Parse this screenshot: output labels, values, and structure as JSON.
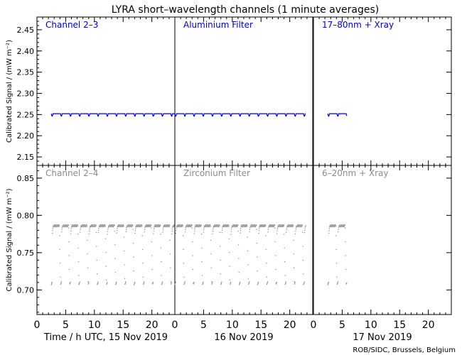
{
  "title": "LYRA short–wavelength channels (1 minute averages)",
  "footer": "ROB/SIDC, Brussels, Belgium",
  "colors": {
    "upper": "#0000c8",
    "lower": "#8c8c8c",
    "frame": "#000000"
  },
  "xaxis": {
    "range": [
      0,
      24
    ],
    "ticks": [
      0,
      5,
      10,
      15,
      20
    ],
    "day_labels": [
      "Time / h UTC, 15 Nov 2019",
      "16 Nov 2019",
      "17 Nov 2019"
    ]
  },
  "chart_data": [
    {
      "type": "line",
      "row": "upper",
      "ylabel": "Calibrated Signal / (mW m⁻²)",
      "ylim": [
        2.13,
        2.48
      ],
      "yticks": [
        "2.15",
        "2.20",
        "2.25",
        "2.30",
        "2.35",
        "2.40",
        "2.45"
      ],
      "panels": [
        {
          "label": "Channel 2–3",
          "day": "15 Nov 2019",
          "x_start": 2.5,
          "x_end": 24,
          "level": 2.252,
          "dip": 0.006,
          "period_h": 1.6
        },
        {
          "label": "Aluminium Filter",
          "day": "16 Nov 2019",
          "x_start": 0,
          "x_end": 22.8,
          "level": 2.252,
          "dip": 0.006,
          "period_h": 1.6
        },
        {
          "label": "17–80nm + Xray",
          "day": "17 Nov 2019",
          "x_start": 2.5,
          "x_end": 5.8,
          "level": 2.252,
          "dip": 0.006,
          "period_h": 1.6
        }
      ]
    },
    {
      "type": "scatter",
      "row": "lower",
      "ylabel": "Calibrated Signal / (mW m⁻²)",
      "ylim": [
        0.667,
        0.867
      ],
      "yticks": [
        "0.70",
        "0.75",
        "0.80",
        "0.85"
      ],
      "panels": [
        {
          "label": "Channel 2–4",
          "day": "15 Nov 2019",
          "x_start": 2.5,
          "x_end": 24,
          "high": 0.786,
          "low": 0.707,
          "period_h": 1.6
        },
        {
          "label": "Zirconium Filter",
          "day": "16 Nov 2019",
          "x_start": 0,
          "x_end": 22.8,
          "high": 0.786,
          "low": 0.707,
          "period_h": 1.6
        },
        {
          "label": "6–20nm + Xray",
          "day": "17 Nov 2019",
          "x_start": 2.5,
          "x_end": 5.8,
          "high": 0.786,
          "low": 0.707,
          "period_h": 1.6
        }
      ]
    }
  ]
}
